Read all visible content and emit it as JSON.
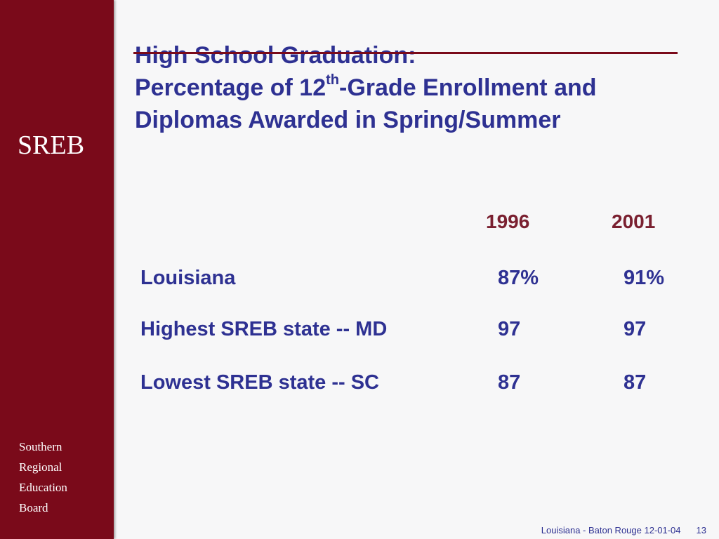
{
  "sidebar": {
    "logo_text": "SREB",
    "org_lines": [
      "Southern",
      "Regional",
      "Education",
      "Board"
    ]
  },
  "title": {
    "line1": "High School Graduation:",
    "line2_prefix": "Percentage of 12",
    "line2_sup": "th",
    "line2_suffix": "-Grade Enrollment and",
    "line3": "Diplomas Awarded in Spring/Summer"
  },
  "table": {
    "years": [
      "1996",
      "2001"
    ],
    "rows": [
      {
        "label": "Louisiana",
        "values": [
          "87%",
          "91%"
        ]
      },
      {
        "label": "Highest SREB state -- MD",
        "values": [
          "97",
          "97"
        ]
      },
      {
        "label": "Lowest SREB state -- SC",
        "values": [
          "87",
          "87"
        ]
      }
    ]
  },
  "footer": {
    "text": "Louisiana - Baton Rouge 12-01-04",
    "page_number": "13"
  },
  "colors": {
    "sidebar": "#7a0a1a",
    "title_text": "#2e3192",
    "year_header": "#7a2030",
    "background": "#f7f7f8"
  }
}
